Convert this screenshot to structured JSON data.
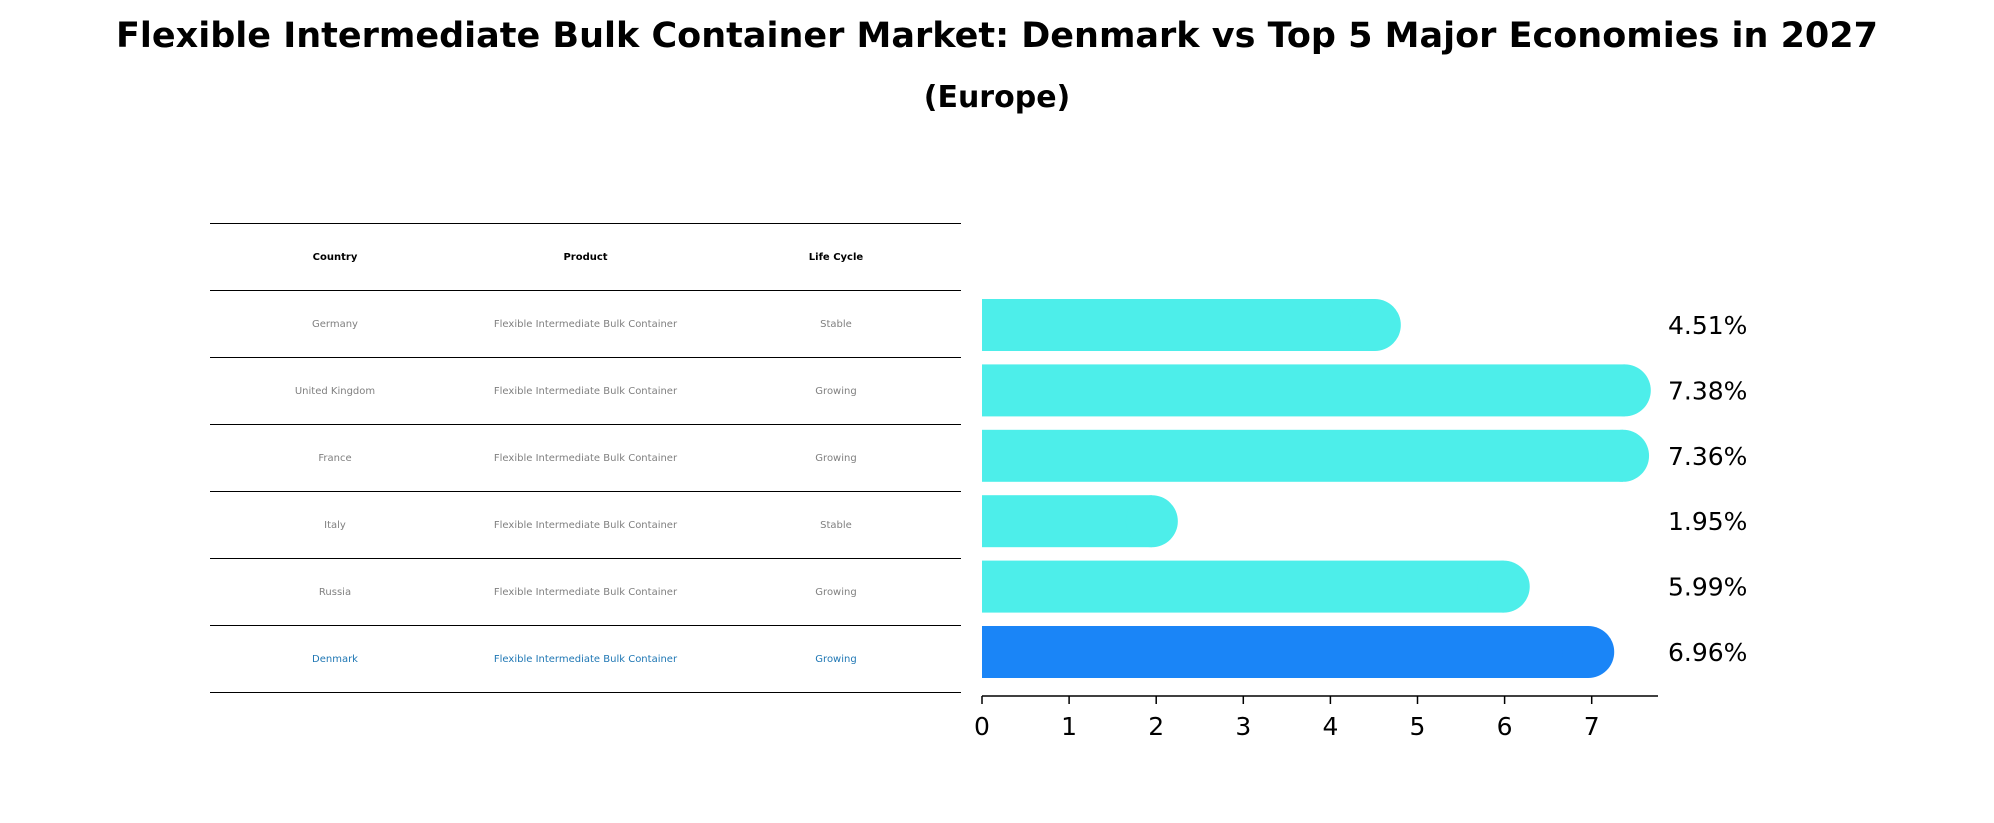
{
  "chart_data": {
    "type": "bar",
    "orientation": "horizontal",
    "title": "Flexible Intermediate Bulk Container Market: Denmark vs Top 5 Major Economies in 2027",
    "subtitle": "(Europe)",
    "table": {
      "headers": [
        "Country",
        "Product",
        "Life Cycle"
      ],
      "rows": [
        [
          "Germany",
          "Flexible Intermediate Bulk Container",
          "Stable"
        ],
        [
          "United Kingdom",
          "Flexible Intermediate Bulk Container",
          "Growing"
        ],
        [
          "France",
          "Flexible Intermediate Bulk Container",
          "Growing"
        ],
        [
          "Italy",
          "Flexible Intermediate Bulk Container",
          "Stable"
        ],
        [
          "Russia",
          "Flexible Intermediate Bulk Container",
          "Growing"
        ],
        [
          "Denmark",
          "Flexible Intermediate Bulk Container",
          "Growing"
        ]
      ],
      "highlight_row": 5
    },
    "categories": [
      "Germany",
      "United Kingdom",
      "France",
      "Italy",
      "Russia",
      "Denmark"
    ],
    "values": [
      4.51,
      7.38,
      7.36,
      1.95,
      5.99,
      6.96
    ],
    "value_labels": [
      "4.51%",
      "7.38%",
      "7.36%",
      "1.95%",
      "5.99%",
      "6.96%"
    ],
    "xticks": [
      "0",
      "1",
      "2",
      "3",
      "4",
      "5",
      "6",
      "7"
    ],
    "xlim": [
      0,
      7.8
    ],
    "colors": {
      "bar": "#4DEEEA",
      "highlight_bar": "#1A85F7",
      "highlight_text": "#1f77b4",
      "table_text": "#808080"
    }
  }
}
